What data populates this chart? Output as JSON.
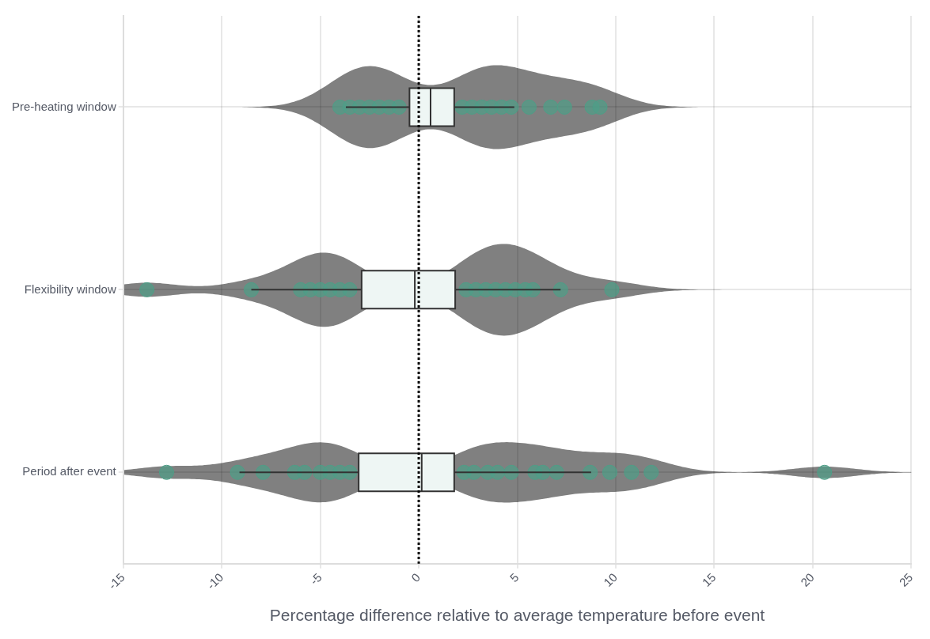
{
  "chart_data": {
    "type": "box",
    "orientation": "horizontal",
    "xlabel": "Percentage difference relative to average temperature before event",
    "categories": [
      "Pre-heating window",
      "Flexibility window",
      "Period after event"
    ],
    "xlim": [
      -15,
      25
    ],
    "xticks": [
      -15,
      -10,
      -5,
      0,
      5,
      10,
      15,
      20,
      25
    ],
    "grid": true,
    "legend": false,
    "boxes": [
      {
        "low": -3.7,
        "q1": -0.47,
        "median": 0.6,
        "q3": 1.8,
        "high": 4.85
      },
      {
        "low": -8.5,
        "q1": -2.9,
        "median": -0.2,
        "q3": 1.85,
        "high": 7.2
      },
      {
        "low": -9.1,
        "q1": -3.05,
        "median": 0.15,
        "q3": 1.8,
        "high": 8.75
      }
    ],
    "ref_lines": [
      {
        "axis": "x",
        "value": 0,
        "color": "#000000",
        "line_style": "dotted"
      }
    ],
    "series": [
      {
        "type": "scatter",
        "color": "#4e9e87",
        "x": [
          "Pre-heating window",
          "Pre-heating window",
          "Pre-heating window",
          "Pre-heating window",
          "Pre-heating window",
          "Pre-heating window",
          "Pre-heating window",
          "Pre-heating window",
          "Pre-heating window",
          "Pre-heating window",
          "Pre-heating window",
          "Pre-heating window",
          "Pre-heating window",
          "Pre-heating window",
          "Pre-heating window",
          "Pre-heating window",
          "Pre-heating window",
          "Pre-heating window"
        ],
        "values": [
          -4.0,
          -3.5,
          -3.0,
          -2.5,
          -2.0,
          -1.5,
          -1.0,
          2.2,
          2.7,
          3.2,
          3.7,
          4.2,
          4.7,
          5.6,
          6.7,
          7.4,
          8.8,
          9.2
        ]
      },
      {
        "type": "scatter",
        "color": "#4e9e87",
        "x": [
          "Flexibility window",
          "Flexibility window",
          "Flexibility window",
          "Flexibility window",
          "Flexibility window",
          "Flexibility window",
          "Flexibility window",
          "Flexibility window",
          "Flexibility window",
          "Flexibility window",
          "Flexibility window",
          "Flexibility window",
          "Flexibility window",
          "Flexibility window",
          "Flexibility window",
          "Flexibility window",
          "Flexibility window",
          "Flexibility window"
        ],
        "values": [
          -13.8,
          -8.5,
          -6.0,
          -5.5,
          -5.0,
          -4.5,
          -4.0,
          -3.5,
          2.4,
          2.9,
          3.4,
          3.9,
          4.4,
          4.9,
          5.4,
          5.8,
          7.2,
          9.8
        ]
      },
      {
        "type": "scatter",
        "color": "#4e9e87",
        "x": [
          "Period after event",
          "Period after event",
          "Period after event",
          "Period after event",
          "Period after event",
          "Period after event",
          "Period after event",
          "Period after event",
          "Period after event",
          "Period after event",
          "Period after event",
          "Period after event",
          "Period after event",
          "Period after event",
          "Period after event",
          "Period after event",
          "Period after event",
          "Period after event",
          "Period after event",
          "Period after event",
          "Period after event",
          "Period after event"
        ],
        "values": [
          -12.8,
          -9.2,
          -7.9,
          -6.3,
          -5.8,
          -5.0,
          -4.5,
          -4.0,
          -3.5,
          2.3,
          2.8,
          3.5,
          4.0,
          4.7,
          5.9,
          6.3,
          7.0,
          8.7,
          9.7,
          10.8,
          11.8,
          20.6
        ]
      }
    ]
  }
}
